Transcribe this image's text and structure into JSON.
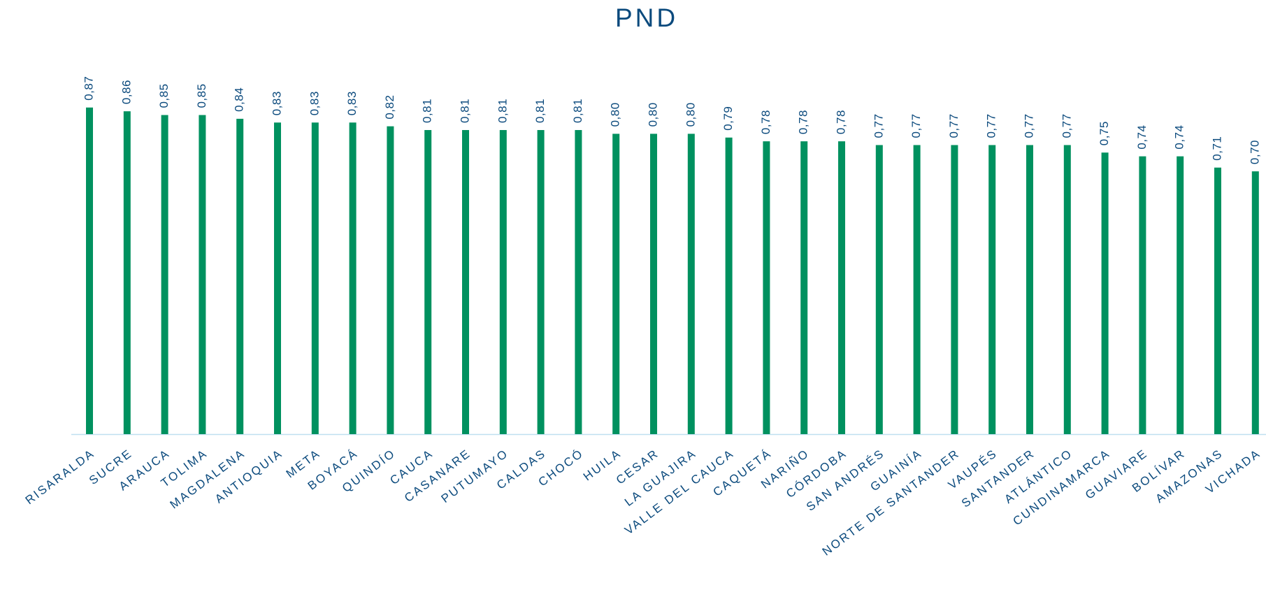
{
  "chart_data": {
    "type": "bar",
    "title": "PND",
    "categories": [
      "RISARALDA",
      "SUCRE",
      "ARAUCA",
      "TOLIMA",
      "MAGDALENA",
      "ANTIOQUIA",
      "META",
      "BOYACÁ",
      "QUINDÍO",
      "CAUCA",
      "CASANARE",
      "PUTUMAYO",
      "CALDAS",
      "CHOCÓ",
      "HUILA",
      "CESAR",
      "LA GUAJIRA",
      "VALLE DEL CAUCA",
      "CAQUETÁ",
      "NARIÑO",
      "CÓRDOBA",
      "SAN ANDRÉS",
      "GUAINÍA",
      "NORTE DE SANTANDER",
      "VAUPÉS",
      "SANTANDER",
      "ATLÁNTICO",
      "CUNDINAMARCA",
      "GUAVIARE",
      "BOLÍVAR",
      "AMAZONAS",
      "VICHADA"
    ],
    "values": [
      0.87,
      0.86,
      0.85,
      0.85,
      0.84,
      0.83,
      0.83,
      0.83,
      0.82,
      0.81,
      0.81,
      0.81,
      0.81,
      0.81,
      0.8,
      0.8,
      0.8,
      0.79,
      0.78,
      0.78,
      0.78,
      0.77,
      0.77,
      0.77,
      0.77,
      0.77,
      0.77,
      0.75,
      0.74,
      0.74,
      0.71,
      0.7
    ],
    "value_labels": [
      "0,87",
      "0,86",
      "0,85",
      "0,85",
      "0,84",
      "0,83",
      "0,83",
      "0,83",
      "0,82",
      "0,81",
      "0,81",
      "0,81",
      "0,81",
      "0,81",
      "0,80",
      "0,80",
      "0,80",
      "0,79",
      "0,78",
      "0,78",
      "0,78",
      "0,77",
      "0,77",
      "0,77",
      "0,77",
      "0,77",
      "0,77",
      "0,75",
      "0,74",
      "0,74",
      "0,71",
      "0,70"
    ],
    "color": "#00915f",
    "ylim": [
      0,
      1
    ]
  }
}
